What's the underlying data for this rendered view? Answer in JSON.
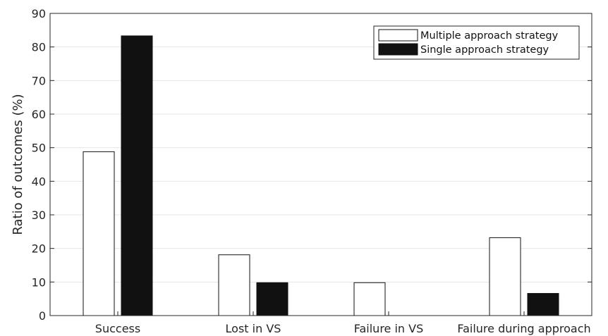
{
  "chart_data": {
    "type": "bar",
    "title": "",
    "xlabel": "",
    "ylabel": "Ratio of outcomes (%)",
    "ylim": [
      0,
      90
    ],
    "yticks": [
      0,
      10,
      20,
      30,
      40,
      50,
      60,
      70,
      80,
      90
    ],
    "grid": "horizontal",
    "legend_position": "top-right",
    "categories": [
      "Success",
      "Lost in VS",
      "Failure in VS",
      "Failure during approach"
    ],
    "series": [
      {
        "name": "Multiple approach strategy",
        "color": "#ffffff",
        "values": [
          48.8,
          18.1,
          9.8,
          23.2
        ]
      },
      {
        "name": "Single approach strategy",
        "color": "#111111",
        "values": [
          83.3,
          9.8,
          0,
          6.6
        ]
      }
    ]
  }
}
